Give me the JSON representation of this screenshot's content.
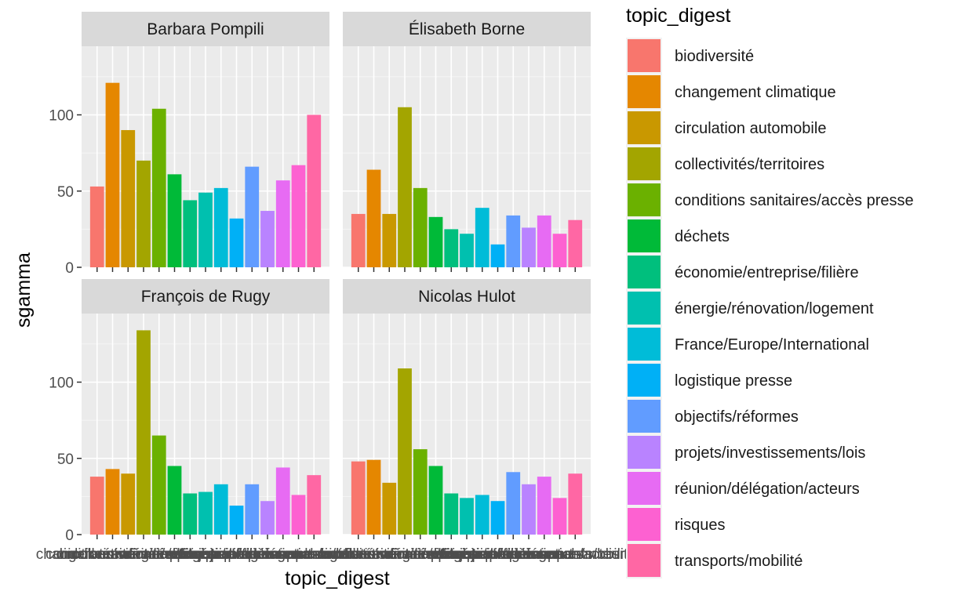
{
  "chart_data": {
    "type": "bar",
    "facet_wrap": true,
    "xlabel": "topic_digest",
    "ylabel": "sgamma",
    "ylim": [
      0,
      145
    ],
    "yticks": [
      0,
      50,
      100
    ],
    "legend": {
      "title": "topic_digest",
      "position": "right"
    },
    "categories": [
      "biodiversité",
      "changement climatique",
      "circulation automobile",
      "collectivités/territoires",
      "conditions sanitaires/accès presse",
      "déchets",
      "économie/entreprise/filière",
      "énergie/rénovation/logement",
      "France/Europe/International",
      "logistique presse",
      "objectifs/réformes",
      "projets/investissements/lois",
      "réunion/délégation/acteurs",
      "risques",
      "transports/mobilité"
    ],
    "colors": [
      "#F8766D",
      "#E58700",
      "#C99800",
      "#A3A500",
      "#6BB100",
      "#00BA38",
      "#00BF7D",
      "#00C0AF",
      "#00BCD8",
      "#00B0F6",
      "#619CFF",
      "#B983FF",
      "#E76BF3",
      "#FD61D1",
      "#FF67A4"
    ],
    "panels": [
      {
        "title": "Barbara Pompili",
        "values": [
          53,
          121,
          90,
          70,
          104,
          61,
          44,
          49,
          52,
          32,
          66,
          37,
          57,
          67,
          100
        ]
      },
      {
        "title": "Élisabeth Borne",
        "values": [
          35,
          64,
          35,
          105,
          52,
          33,
          25,
          22,
          39,
          15,
          34,
          26,
          34,
          22,
          31
        ]
      },
      {
        "title": "François de Rugy",
        "values": [
          38,
          43,
          40,
          134,
          65,
          45,
          27,
          28,
          33,
          19,
          33,
          22,
          44,
          26,
          39
        ]
      },
      {
        "title": "Nicolas Hulot",
        "values": [
          48,
          49,
          34,
          109,
          56,
          45,
          27,
          24,
          26,
          22,
          41,
          33,
          38,
          24,
          40
        ]
      }
    ]
  }
}
